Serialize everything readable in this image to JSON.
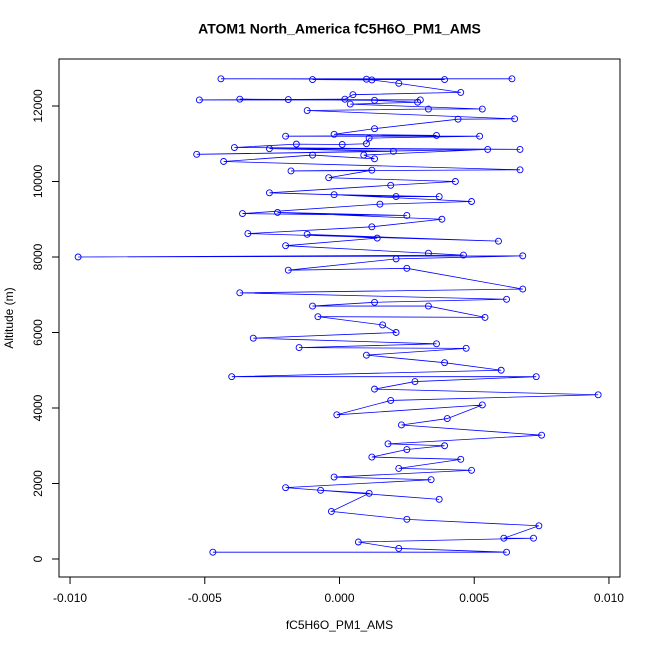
{
  "chart_data": {
    "type": "line",
    "title": "ATOM1 North_America fC5H6O_PM1_AMS",
    "x_label": "fC5H6O_PM1_AMS",
    "y_label": "Altitude (m)",
    "color": "#0000ff",
    "xlim": [
      -0.01041,
      0.01041
    ],
    "ylim": [
      -477,
      13245
    ],
    "xticks": [
      {
        "value": -0.01,
        "label": "-0.010"
      },
      -0.005,
      {
        "value": 0,
        "label": "0.000"
      },
      0.005,
      {
        "value": 0.01,
        "label": "0.010"
      }
    ],
    "yticks": [
      0,
      2000,
      4000,
      6000,
      8000,
      10000,
      12000
    ],
    "x": [
      0.0064,
      -0.0044,
      0.001,
      0.0039,
      -0.001,
      0.0012,
      0.0022,
      0.0045,
      0.0005,
      0.0002,
      -0.0052,
      0.003,
      -0.0037,
      -0.0019,
      0.0013,
      0.0029,
      0.0004,
      0.0053,
      0.0033,
      -0.0012,
      0.0065,
      0.0044,
      0.0013,
      -0.0002,
      0.0036,
      -0.002,
      0.0052,
      0.0011,
      0.001,
      0.0001,
      -0.0016,
      -0.0039,
      0.0067,
      -0.0026,
      0.002,
      -0.0053,
      0.0055,
      0.0009,
      0.0013,
      -0.001,
      -0.0043,
      0.0067,
      -0.0018,
      0.0012,
      -0.0004,
      0.0043,
      0.0019,
      -0.0026,
      0.0021,
      0.0037,
      -0.0002,
      0.0049,
      0.0015,
      -0.0036,
      0.0025,
      -0.0023,
      0.0038,
      0.0012,
      -0.0034,
      0.0059,
      -0.0012,
      0.0014,
      -0.002,
      0.0033,
      0.0046,
      -0.0097,
      0.0068,
      0.0021,
      -0.0019,
      0.0025,
      0.0068,
      -0.0037,
      0.0062,
      0.0013,
      -0.001,
      0.0033,
      0.0054,
      -0.0008,
      0.0016,
      0.0021,
      -0.0032,
      0.0036,
      -0.0015,
      0.0047,
      0.001,
      0.0039,
      0.006,
      -0.004,
      0.0073,
      0.0028,
      0.0013,
      0.0096,
      0.0019,
      -0.0001,
      0.0053,
      0.004,
      0.0023,
      0.0075,
      0.0018,
      0.0039,
      0.0025,
      0.0012,
      0.0045,
      0.0022,
      0.0049,
      -0.0002,
      0.0034,
      -0.002,
      0.0037,
      -0.0007,
      0.0011,
      -0.0003,
      0.0025,
      0.0074,
      0.0061,
      0.0072,
      0.0007,
      0.0022,
      0.0062,
      -0.0047
    ],
    "y": [
      12720,
      12720,
      12710,
      12700,
      12700,
      12690,
      12600,
      12360,
      12300,
      12180,
      12160,
      12160,
      12180,
      12170,
      12150,
      12100,
      12050,
      11920,
      11920,
      11880,
      11660,
      11650,
      11400,
      11250,
      11220,
      11200,
      11200,
      11150,
      11000,
      10980,
      10990,
      10900,
      10850,
      10870,
      10800,
      10720,
      10850,
      10700,
      10600,
      10700,
      10530,
      10310,
      10280,
      10300,
      10100,
      10000,
      9900,
      9700,
      9600,
      9600,
      9650,
      9470,
      9400,
      9150,
      9100,
      9180,
      9000,
      8800,
      8620,
      8420,
      8600,
      8500,
      8300,
      8100,
      8050,
      8000,
      8030,
      7950,
      7650,
      7700,
      7150,
      7050,
      6880,
      6800,
      6700,
      6700,
      6400,
      6420,
      6200,
      6000,
      5850,
      5700,
      5600,
      5580,
      5400,
      5200,
      5000,
      4830,
      4830,
      4700,
      4500,
      4350,
      4200,
      3820,
      4080,
      3720,
      3550,
      3280,
      3050,
      3000,
      2900,
      2700,
      2640,
      2400,
      2350,
      2170,
      2100,
      1890,
      1580,
      1820,
      1740,
      1260,
      1050,
      880,
      550,
      550,
      450,
      280,
      180,
      180
    ]
  }
}
